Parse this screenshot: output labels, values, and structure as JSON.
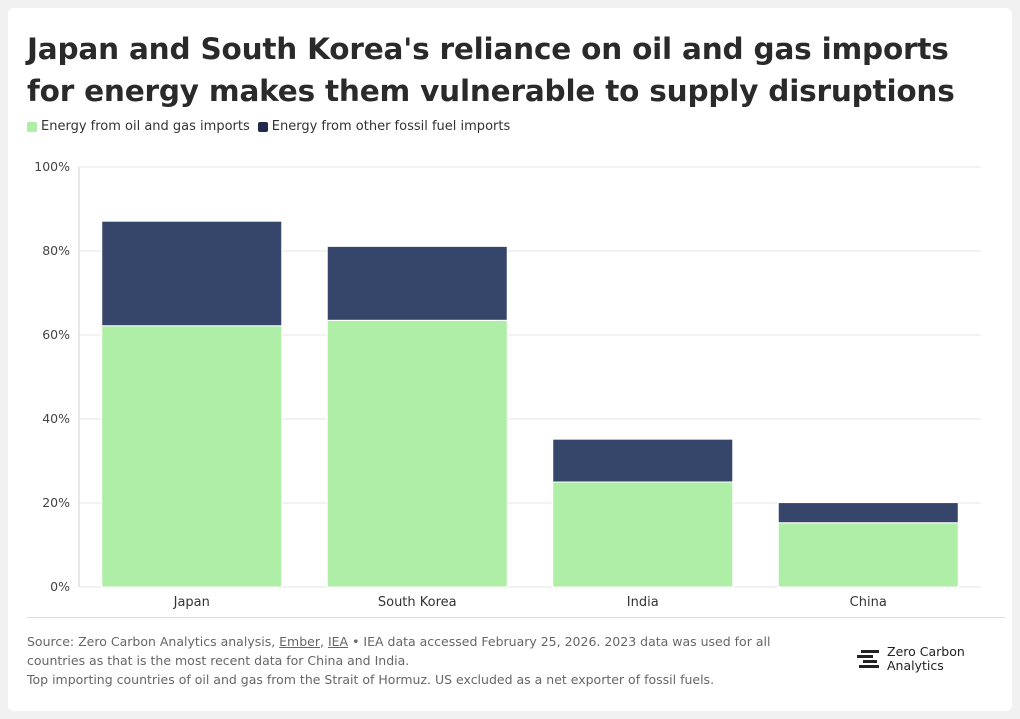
{
  "title": "Japan and South Korea's reliance on oil and gas imports for energy makes them vulnerable to supply disruptions",
  "legend": {
    "oil_gas_label": "Energy from oil and gas imports",
    "other_label": "Energy from other fossil fuel imports"
  },
  "colors": {
    "oil_gas": "#aeeea6",
    "other": "#36466a",
    "grid": "#e6e6e6"
  },
  "chart_data": {
    "type": "bar",
    "stacked": true,
    "categories": [
      "Japan",
      "South Korea",
      "India",
      "China"
    ],
    "series": [
      {
        "name": "Energy from oil and gas imports",
        "values": [
          62.2,
          63.5,
          25,
          15.3
        ]
      },
      {
        "name": "Energy from other fossil fuel imports",
        "values": [
          24.9,
          17.6,
          10.2,
          4.8
        ]
      }
    ],
    "yticks": [
      "0%",
      "20%",
      "40%",
      "60%",
      "80%",
      "100%"
    ],
    "ylim": [
      0,
      100
    ],
    "grid": true,
    "legend_position": "top-left"
  },
  "footer": {
    "source_prefix": "Source: Zero Carbon Analytics analysis, ",
    "link1": "Ember",
    "sep": ", ",
    "link2": "IEA",
    "source_rest": " • IEA data accessed February 25, 2026. 2023 data was used for all countries as that is the most recent data for China and India.",
    "note": "Top importing countries of oil and gas from the Strait of Hormuz. US excluded as a net exporter of fossil fuels.",
    "brand_line1": "Zero Carbon",
    "brand_line2": "Analytics"
  }
}
